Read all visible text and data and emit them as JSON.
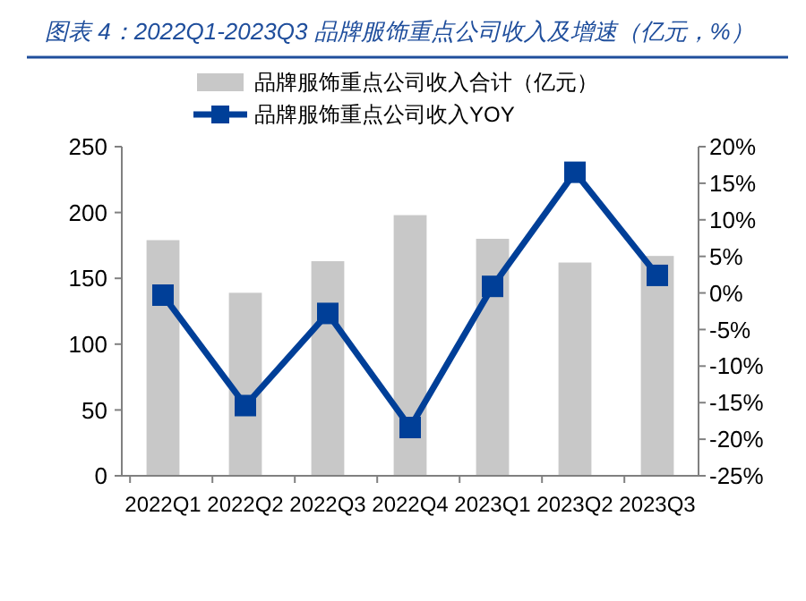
{
  "chart_data": {
    "type": "bar",
    "title": "图表 4：2022Q1-2023Q3 品牌服饰重点公司收入及增速（亿元，%）",
    "categories": [
      "2022Q1",
      "2022Q2",
      "2022Q3",
      "2022Q4",
      "2023Q1",
      "2023Q2",
      "2023Q3"
    ],
    "series": [
      {
        "name": "品牌服饰重点公司收入合计（亿元）",
        "color": "#c8c8c8",
        "values": [
          179,
          139,
          163,
          198,
          180,
          162,
          167
        ]
      },
      {
        "name": "品牌服饰重点公司收入YOY",
        "type": "line",
        "axis": "y2",
        "color": "#003f98",
        "marker": "square",
        "values": [
          -0.3,
          -15.4,
          -2.8,
          -18.4,
          0.9,
          16.5,
          2.4
        ]
      }
    ],
    "ylim": [
      0,
      250
    ],
    "yticks": [
      0,
      50,
      100,
      150,
      200,
      250
    ],
    "y2lim": [
      -25,
      20
    ],
    "y2ticks": [
      {
        "value": -25,
        "label": "-25%"
      },
      {
        "value": -20,
        "label": "-20%"
      },
      {
        "value": -15,
        "label": "-15%"
      },
      {
        "value": -10,
        "label": "-10%"
      },
      {
        "value": -5,
        "label": "-5%"
      },
      {
        "value": 0,
        "label": "0%"
      },
      {
        "value": 5,
        "label": "5%"
      },
      {
        "value": 10,
        "label": "10%"
      },
      {
        "value": 15,
        "label": "15%"
      },
      {
        "value": 20,
        "label": "20%"
      }
    ],
    "legend": "top",
    "grid": false
  }
}
